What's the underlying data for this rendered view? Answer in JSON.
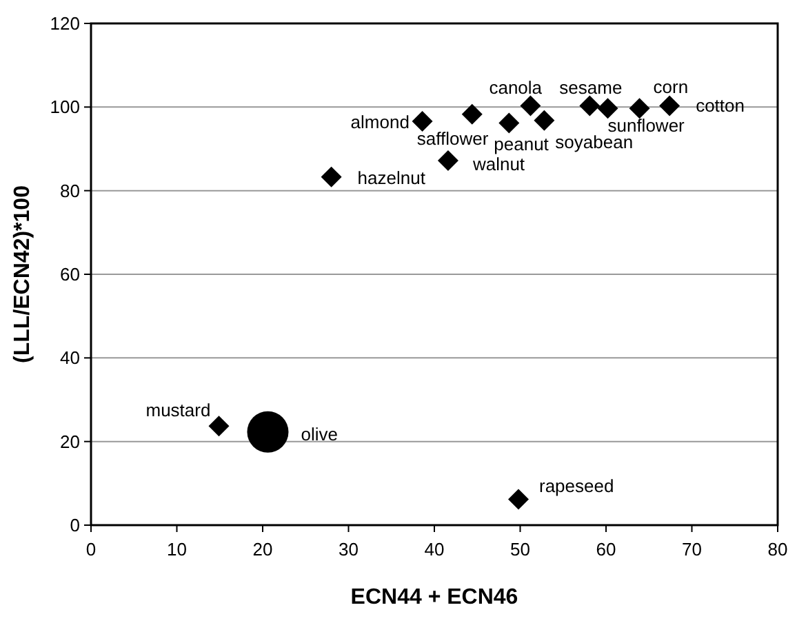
{
  "chart_data": {
    "type": "scatter",
    "xlabel": "ECN44 + ECN46",
    "ylabel": "(LLL/ECN42)*100",
    "xlim": [
      0,
      80
    ],
    "xticks": [
      0,
      10,
      20,
      30,
      40,
      50,
      60,
      70,
      80
    ],
    "ylim": [
      0,
      120
    ],
    "yticks": [
      0,
      20,
      40,
      60,
      80,
      100,
      120
    ],
    "grid": "y",
    "series": [
      {
        "color": "#000000",
        "marker": "diamond",
        "x": [
          38.6,
          44.4,
          51.2,
          48.7,
          52.8,
          58.1,
          60.2,
          63.9,
          67.4,
          41.6,
          28.0,
          14.9,
          49.8
        ],
        "values": [
          96.6,
          98.3,
          100.3,
          96.2,
          96.8,
          100.3,
          99.7,
          99.7,
          100.3,
          87.2,
          83.3,
          23.7,
          6.2
        ]
      },
      {
        "color": "#000000",
        "marker": "circle",
        "x": [
          20.6
        ],
        "values": [
          22.3
        ]
      }
    ],
    "annotations": [
      {
        "text": "almond",
        "x": 38.6,
        "y": 96.6
      },
      {
        "text": "safflower",
        "x": 44.4,
        "y": 98.3
      },
      {
        "text": "canola",
        "x": 51.2,
        "y": 100.3
      },
      {
        "text": "peanut",
        "x": 48.7,
        "y": 96.2
      },
      {
        "text": "soyabean",
        "x": 52.8,
        "y": 96.8
      },
      {
        "text": "sesame",
        "x": 58.1,
        "y": 100.3
      },
      {
        "text": "sunflower",
        "x": 60.2,
        "y": 99.7
      },
      {
        "text": "corn",
        "x": 63.9,
        "y": 99.7
      },
      {
        "text": "cotton",
        "x": 67.4,
        "y": 100.3
      },
      {
        "text": "walnut",
        "x": 41.6,
        "y": 87.2
      },
      {
        "text": "hazelnut",
        "x": 28.0,
        "y": 83.3
      },
      {
        "text": "mustard",
        "x": 14.9,
        "y": 23.7
      },
      {
        "text": "rapeseed",
        "x": 49.8,
        "y": 6.2
      },
      {
        "text": "olive",
        "x": 20.6,
        "y": 22.3
      }
    ]
  }
}
